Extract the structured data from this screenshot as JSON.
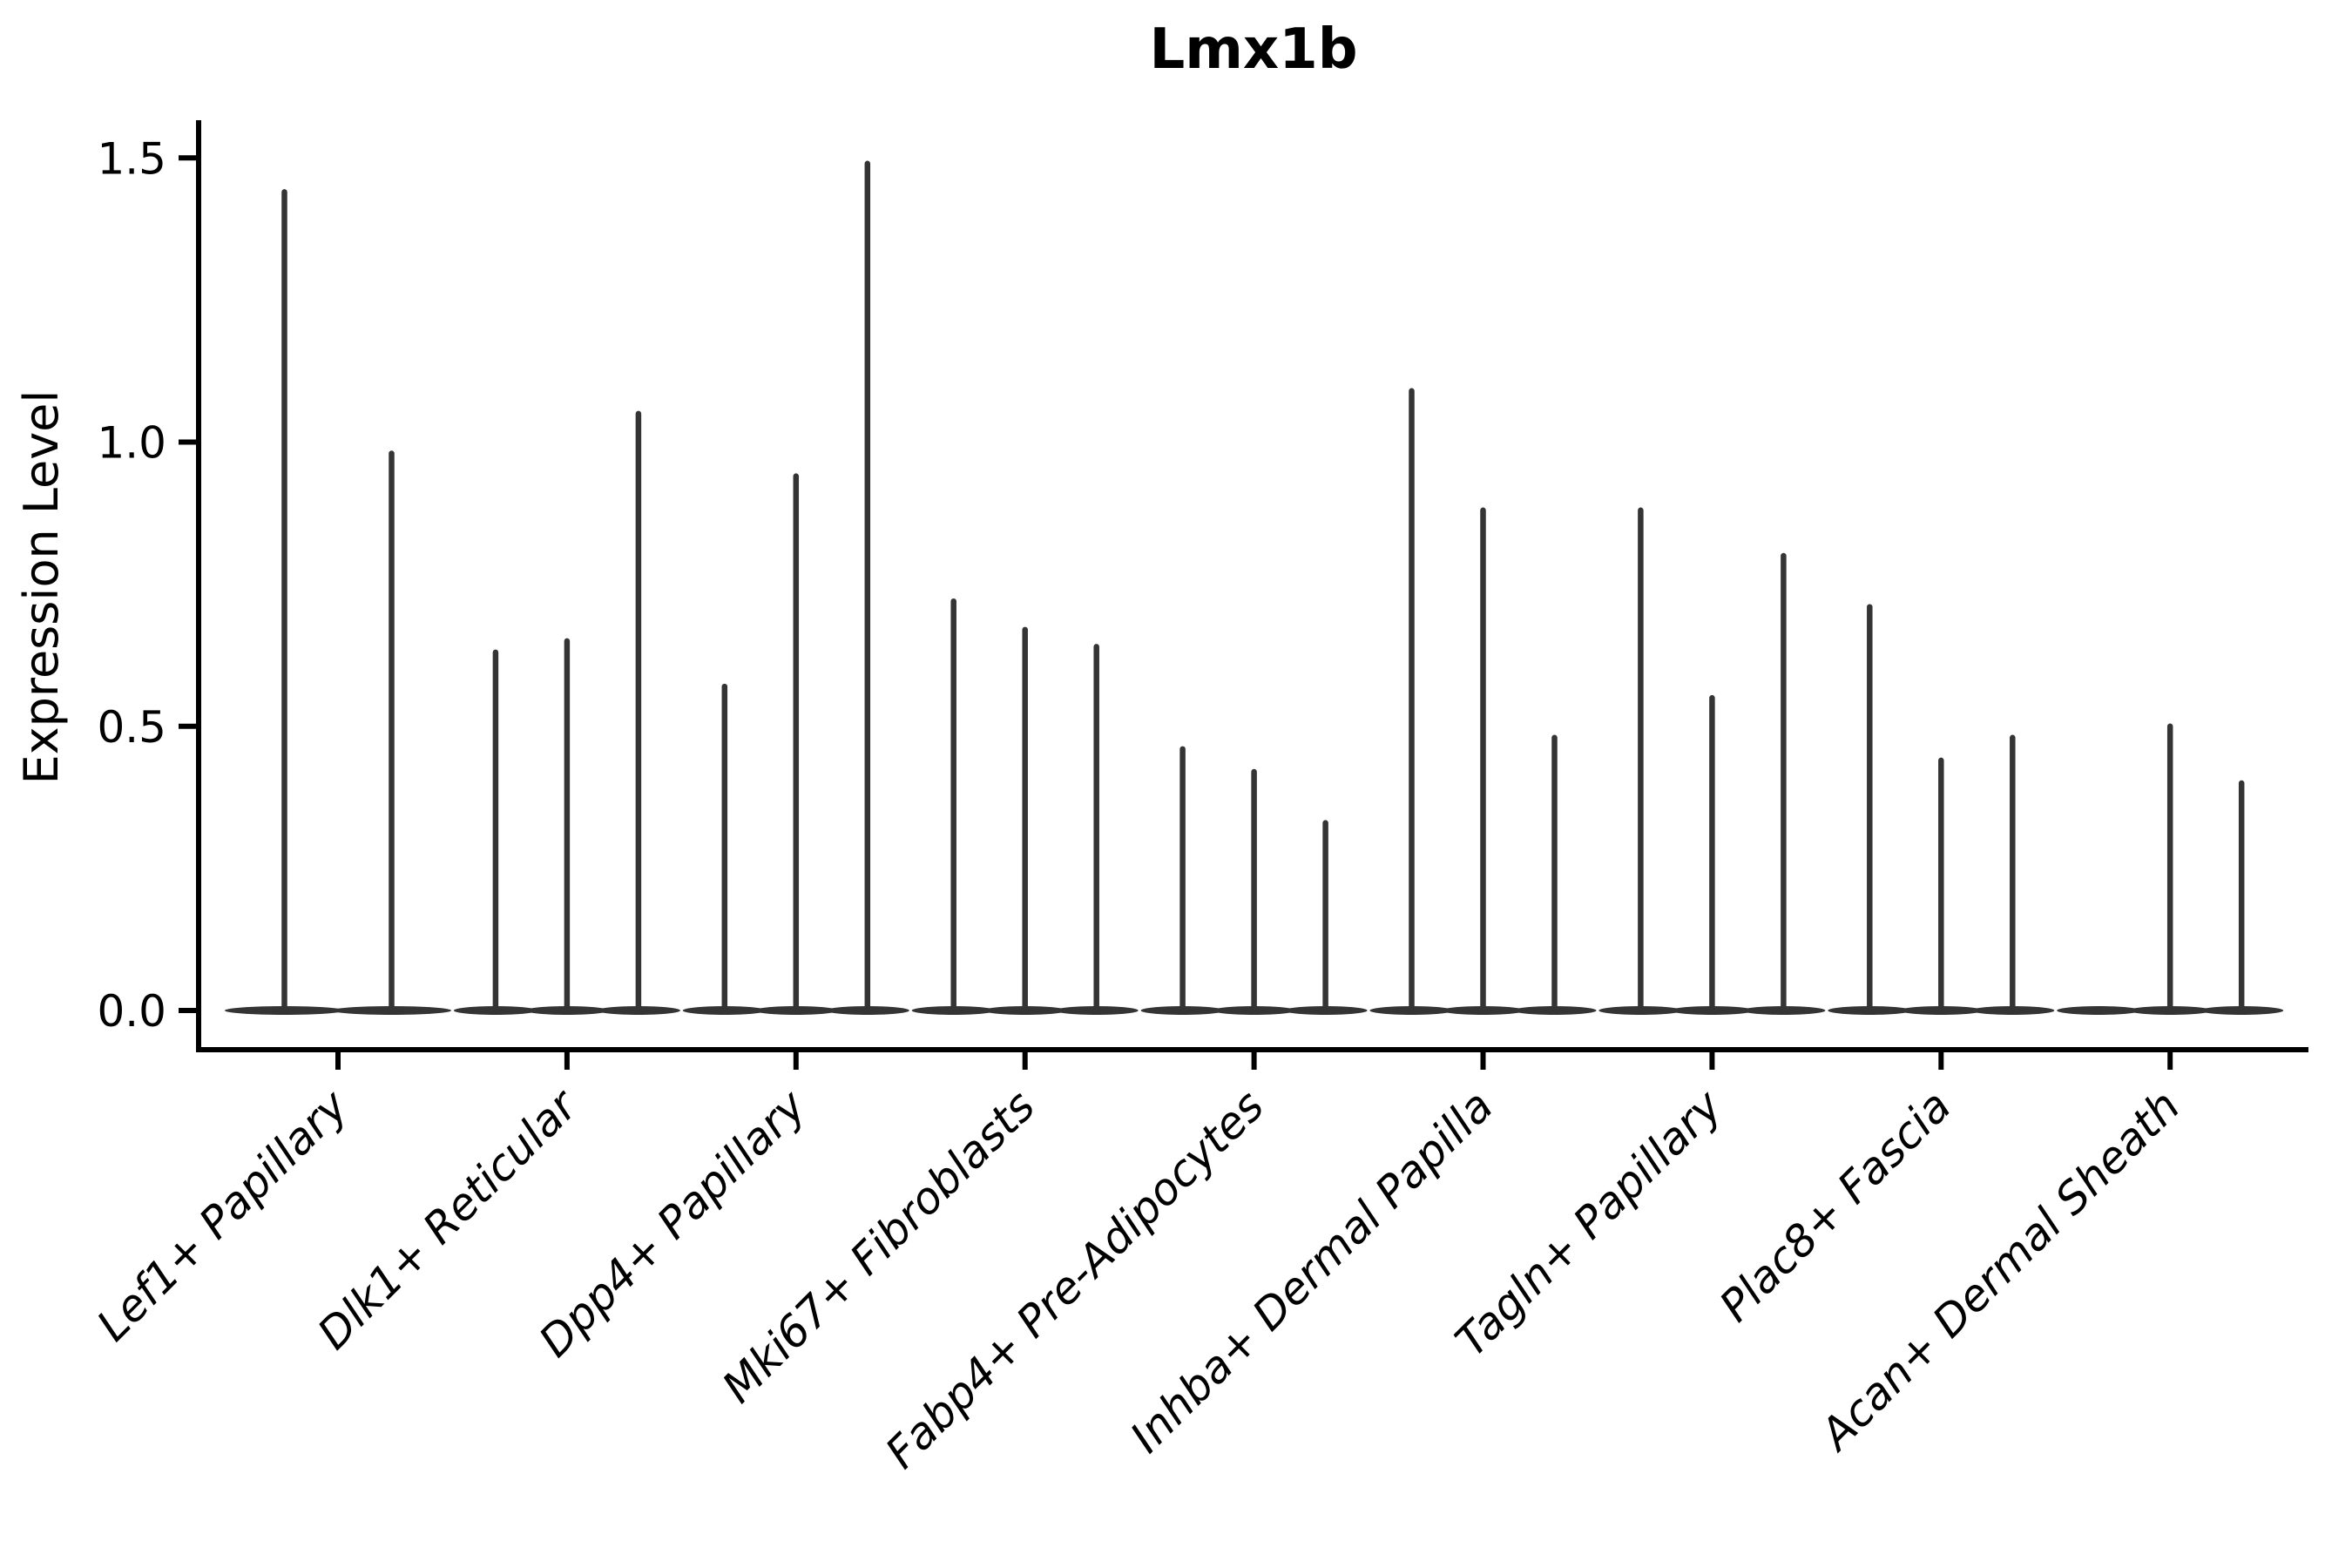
{
  "chart_data": {
    "type": "violin",
    "title": "Lmx1b",
    "xlabel": "",
    "ylabel": "Expression Level",
    "ylim": [
      -0.07,
      1.57
    ],
    "yticks": [
      0.0,
      0.5,
      1.0,
      1.5
    ],
    "ytick_labels": [
      "0.0",
      "0.5",
      "1.0",
      "1.5"
    ],
    "grid": false,
    "legend": "none",
    "xtick_rotation_deg": 45,
    "xtick_style": "italic",
    "baseline_value": 0.0,
    "categories": [
      "Lef1+ Papillary",
      "Dlk1+ Reticular",
      "Dpp4+ Papillary",
      "Mki67+ Fibroblasts",
      "Fabp4+ Pre-Adipocytes",
      "Inhba+ Dermal Papilla",
      "Tagln+ Papillary",
      "Plac8+ Fascia",
      "Acan+ Dermal Sheath"
    ],
    "groups": [
      {
        "category": "Lef1+ Papillary",
        "violin_peaks": [
          1.44,
          0.98
        ]
      },
      {
        "category": "Dlk1+ Reticular",
        "violin_peaks": [
          0.63,
          0.65,
          1.05
        ]
      },
      {
        "category": "Dpp4+ Papillary",
        "violin_peaks": [
          0.57,
          0.94,
          1.49
        ]
      },
      {
        "category": "Mki67+ Fibroblasts",
        "violin_peaks": [
          0.72,
          0.67,
          0.64
        ]
      },
      {
        "category": "Fabp4+ Pre-Adipocytes",
        "violin_peaks": [
          0.46,
          0.42,
          0.33
        ]
      },
      {
        "category": "Inhba+ Dermal Papilla",
        "violin_peaks": [
          1.09,
          0.88,
          0.48
        ]
      },
      {
        "category": "Tagln+ Papillary",
        "violin_peaks": [
          0.88,
          0.55,
          0.8
        ]
      },
      {
        "category": "Plac8+ Fascia",
        "violin_peaks": [
          0.71,
          0.44,
          0.48
        ]
      },
      {
        "category": "Acan+ Dermal Sheath",
        "violin_peaks": [
          0.0,
          0.5,
          0.4
        ]
      }
    ],
    "colors": {
      "violin": "#343434",
      "axis": "#000000",
      "text": "#000000",
      "background": "#ffffff"
    }
  }
}
